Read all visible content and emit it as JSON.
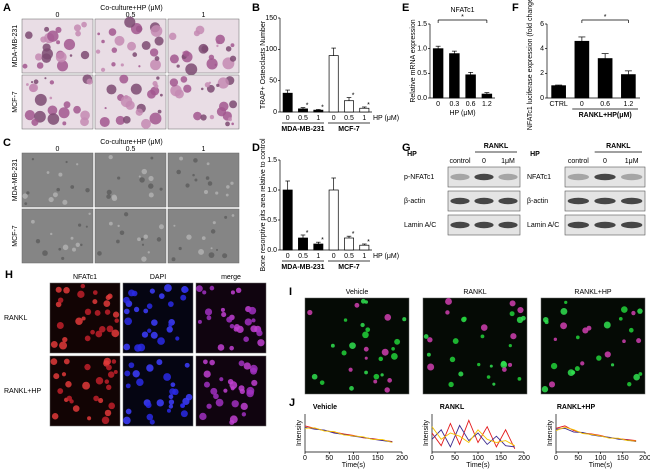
{
  "panel_letters": [
    "A",
    "B",
    "C",
    "D",
    "E",
    "F",
    "G",
    "H",
    "I",
    "J"
  ],
  "panel_a": {
    "header": "Co-culture+HP (μM)",
    "columns": [
      "0",
      "0.5",
      "1"
    ],
    "rows": [
      "MDA-MB-231",
      "MCF-7"
    ]
  },
  "panel_c": {
    "header": "Co-culture+HP (μM)",
    "columns": [
      "0",
      "0.5",
      "1"
    ],
    "rows": [
      "MDA-MB-231",
      "MCF-7"
    ]
  },
  "panel_g": {
    "left": {
      "treatment": "HP",
      "stimulus": "RANKL",
      "lanes": [
        "control",
        "0",
        "1μM"
      ],
      "rows": [
        "p-NFATc1",
        "β-actin",
        "Lamin A/C"
      ]
    },
    "right": {
      "treatment": "HP",
      "stimulus": "RANKL",
      "lanes": [
        "control",
        "0",
        "1μM"
      ],
      "rows": [
        "NFATc1",
        "β-actin",
        "Lamin A/C"
      ]
    }
  },
  "panel_h": {
    "columns": [
      "NFATc1",
      "DAPI",
      "merge"
    ],
    "rows": [
      "RANKL",
      "RANKL+HP"
    ]
  },
  "panel_i": {
    "columns": [
      "Vehicle",
      "RANKL",
      "RANKL+HP"
    ]
  },
  "chart_data": [
    {
      "type": "bar",
      "y_label": "TRAP+ Osteoclasts Number",
      "x_label": "HP (μM)",
      "categories": [
        "0",
        "0.5",
        "1",
        "0",
        "0.5",
        "1"
      ],
      "values": [
        30,
        5,
        3,
        90,
        18,
        6
      ],
      "errors": [
        5,
        2,
        1,
        12,
        5,
        2
      ],
      "colors": [
        "#000000",
        "#000000",
        "#000000",
        "#ffffff",
        "#ffffff",
        "#ffffff"
      ],
      "groups": [
        "MDA-MB-231",
        "MCF-7"
      ],
      "group_spans": [
        [
          0,
          2
        ],
        [
          3,
          5
        ]
      ],
      "significant": [
        false,
        true,
        true,
        false,
        true,
        true
      ],
      "marker": "*",
      "ylim": [
        0,
        150
      ],
      "yticks": [
        0,
        50,
        100,
        150
      ]
    },
    {
      "type": "bar",
      "y_label": "Bone resorptive pits area relative to control",
      "x_label": "HP (μM)",
      "categories": [
        "0",
        "0.5",
        "1",
        "0",
        "0.5",
        "1"
      ],
      "values": [
        1.0,
        0.2,
        0.1,
        1.0,
        0.2,
        0.08
      ],
      "errors": [
        0.15,
        0.05,
        0.03,
        0.2,
        0.03,
        0.02
      ],
      "colors": [
        "#000000",
        "#000000",
        "#000000",
        "#ffffff",
        "#ffffff",
        "#ffffff"
      ],
      "groups": [
        "MDA-MB-231",
        "MCF-7"
      ],
      "group_spans": [
        [
          0,
          2
        ],
        [
          3,
          5
        ]
      ],
      "significant": [
        false,
        true,
        true,
        false,
        true,
        true
      ],
      "marker": "*",
      "ylim": [
        0,
        1.5
      ],
      "yticks": [
        {
          "value": 0,
          "label": "0.0"
        },
        0.5,
        {
          "value": 1,
          "label": "1.0"
        },
        1.5
      ]
    },
    {
      "type": "bar",
      "title": "NFATc1",
      "y_label": "Relative mRNA expression",
      "x_label": "HP (μM)",
      "categories": [
        "0",
        "0.3",
        "0.6",
        "1.2"
      ],
      "values": [
        1.0,
        0.9,
        0.47,
        0.08
      ],
      "errors": [
        0.05,
        0.05,
        0.05,
        0.03
      ],
      "colors": [
        "#000000",
        "#000000",
        "#000000",
        "#000000"
      ],
      "bracket": [
        0,
        3
      ],
      "marker": "*",
      "ylim": [
        0,
        1.5
      ],
      "yticks": [
        {
          "value": 0,
          "label": "0.0"
        },
        0.5,
        {
          "value": 1,
          "label": "1.0"
        },
        1.5
      ]
    },
    {
      "type": "bar",
      "y_label": "NFATc1 luciferase expression (fold changed)",
      "categories": [
        "CTRL",
        "0",
        "0.6",
        "1.2"
      ],
      "values": [
        1.0,
        4.6,
        3.2,
        1.9
      ],
      "errors": [
        0.05,
        0.35,
        0.4,
        0.3
      ],
      "colors": [
        "#000000",
        "#000000",
        "#000000",
        "#000000"
      ],
      "groups": [
        "RANKL+HP(μM)"
      ],
      "group_spans": [
        [
          1,
          3
        ]
      ],
      "bracket": [
        1,
        3
      ],
      "marker": "*",
      "ylim": [
        0,
        6
      ],
      "yticks": [
        0,
        2,
        4,
        6
      ]
    },
    {
      "type": "line",
      "title": "Vehicle",
      "y_label": "Intensity",
      "x_label": "Time(s)",
      "x": [
        0,
        20,
        40,
        60,
        80,
        100,
        120,
        140,
        160,
        180
      ],
      "xlim": [
        0,
        200
      ],
      "xticks": [
        0,
        50,
        100,
        150,
        200
      ],
      "ylim": [
        0,
        80
      ],
      "series": [
        {
          "color": "#e41a1c",
          "values": [
            55,
            50,
            45,
            42,
            38,
            35,
            30,
            28,
            25,
            22
          ]
        },
        {
          "color": "#3b2a8f",
          "values": [
            52,
            48,
            46,
            40,
            37,
            33,
            31,
            27,
            24,
            21
          ]
        },
        {
          "color": "#f5c400",
          "values": [
            50,
            51,
            44,
            43,
            36,
            34,
            32,
            26,
            26,
            20
          ]
        }
      ]
    },
    {
      "type": "line",
      "title": "RANKL",
      "y_label": "Intensity",
      "x_label": "Time(s)",
      "x": [
        0,
        20,
        40,
        60,
        80,
        100,
        120,
        140,
        160,
        180
      ],
      "xlim": [
        0,
        200
      ],
      "xticks": [
        0,
        50,
        100,
        150,
        200
      ],
      "ylim": [
        0,
        60
      ],
      "series": [
        {
          "color": "#e41a1c",
          "values": [
            30,
            10,
            45,
            12,
            50,
            15,
            40,
            8,
            35,
            5
          ]
        },
        {
          "color": "#3b2a8f",
          "values": [
            20,
            35,
            8,
            42,
            18,
            30,
            12,
            25,
            10,
            8
          ]
        },
        {
          "color": "#f5c400",
          "values": [
            40,
            20,
            30,
            25,
            15,
            35,
            20,
            15,
            18,
            10
          ]
        }
      ]
    },
    {
      "type": "line",
      "title": "RANKL+HP",
      "y_label": "Intensity",
      "x_label": "Time(s)",
      "x": [
        0,
        20,
        40,
        60,
        80,
        100,
        120,
        140,
        160,
        180
      ],
      "xlim": [
        0,
        200
      ],
      "xticks": [
        0,
        50,
        100,
        150,
        200
      ],
      "ylim": [
        0,
        80
      ],
      "series": [
        {
          "color": "#e41a1c",
          "values": [
            50,
            55,
            45,
            40,
            38,
            35,
            30,
            28,
            26,
            24
          ]
        },
        {
          "color": "#3b2a8f",
          "values": [
            48,
            50,
            42,
            41,
            36,
            33,
            31,
            27,
            25,
            22
          ]
        },
        {
          "color": "#f5c400",
          "values": [
            45,
            52,
            47,
            39,
            37,
            34,
            29,
            29,
            24,
            23
          ]
        }
      ]
    }
  ]
}
